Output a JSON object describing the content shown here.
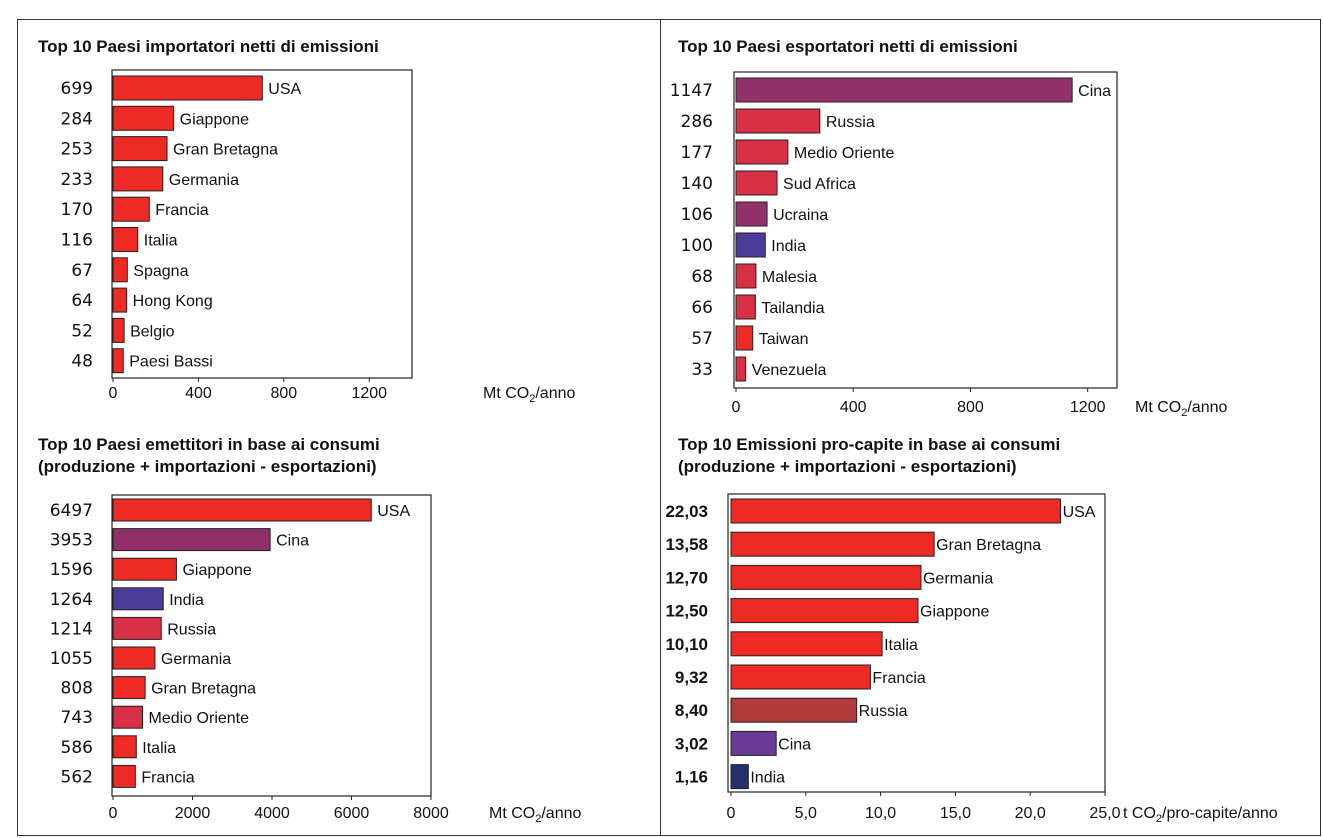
{
  "colors": {
    "red": "#EE2A24",
    "purple": "#92306A",
    "blue": "#4B3C98",
    "crimson": "#D83045",
    "violet": "#6A3A98",
    "navy": "#23306B",
    "brownred": "#B23A3A",
    "border": "#222222"
  },
  "chart_data": [
    {
      "type": "bar",
      "orientation": "horizontal",
      "title": "Top 10 Paesi importatori netti di emissioni",
      "subtitle": "",
      "unit_pre": "Mt CO",
      "unit_sub": "2",
      "unit_post": "/anno",
      "xlim": [
        0,
        1400
      ],
      "ticks": [
        0,
        400,
        800,
        1200
      ],
      "tick_labels": [
        "0",
        "400",
        "800",
        "1200"
      ],
      "categories": [
        "USA",
        "Giappone",
        "Gran Bretagna",
        "Germania",
        "Francia",
        "Italia",
        "Spagna",
        "Hong Kong",
        "Belgio",
        "Paesi Bassi"
      ],
      "values": [
        699,
        284,
        253,
        233,
        170,
        116,
        67,
        64,
        52,
        48
      ],
      "value_labels": [
        "699",
        "284",
        "253",
        "233",
        "170",
        "116",
        "67",
        "64",
        "52",
        "48"
      ],
      "colors": [
        "red",
        "red",
        "red",
        "red",
        "red",
        "red",
        "red",
        "red",
        "red",
        "red"
      ]
    },
    {
      "type": "bar",
      "orientation": "horizontal",
      "title": "Top 10 Paesi esportatori netti di emissioni",
      "subtitle": "",
      "unit_pre": "Mt CO",
      "unit_sub": "2",
      "unit_post": "/anno",
      "xlim": [
        0,
        1300
      ],
      "ticks": [
        0,
        400,
        800,
        1200
      ],
      "tick_labels": [
        "0",
        "400",
        "800",
        "1200"
      ],
      "categories": [
        "Cina",
        "Russia",
        "Medio Oriente",
        "Sud Africa",
        "Ucraina",
        "India",
        "Malesia",
        "Tailandia",
        "Taiwan",
        "Venezuela"
      ],
      "values": [
        1147,
        286,
        177,
        140,
        106,
        100,
        68,
        66,
        57,
        33
      ],
      "value_labels": [
        "1147",
        "286",
        "177",
        "140",
        "106",
        "100",
        "68",
        "66",
        "57",
        "33"
      ],
      "colors": [
        "purple",
        "crimson",
        "crimson",
        "crimson",
        "purple",
        "blue",
        "crimson",
        "crimson",
        "red",
        "crimson"
      ]
    },
    {
      "type": "bar",
      "orientation": "horizontal",
      "title": "Top 10 Paesi emettitori in base ai consumi",
      "subtitle": "(produzione + importazioni - esportazioni)",
      "unit_pre": "Mt CO",
      "unit_sub": "2",
      "unit_post": "/anno",
      "xlim": [
        0,
        8000
      ],
      "ticks": [
        0,
        2000,
        4000,
        6000,
        8000
      ],
      "tick_labels": [
        "0",
        "2000",
        "4000",
        "6000",
        "8000"
      ],
      "categories": [
        "USA",
        "Cina",
        "Giappone",
        "India",
        "Russia",
        "Germania",
        "Gran Bretagna",
        "Medio Oriente",
        "Italia",
        "Francia"
      ],
      "values": [
        6497,
        3953,
        1596,
        1264,
        1214,
        1055,
        808,
        743,
        586,
        562
      ],
      "value_labels": [
        "6497",
        "3953",
        "1596",
        "1264",
        "1214",
        "1055",
        "808",
        "743",
        "586",
        "562"
      ],
      "colors": [
        "red",
        "purple",
        "red",
        "blue",
        "crimson",
        "red",
        "red",
        "crimson",
        "red",
        "red"
      ]
    },
    {
      "type": "bar",
      "orientation": "horizontal",
      "title": "Top 10 Emissioni pro-capite in base ai consumi",
      "subtitle": "(produzione + importazioni - esportazioni)",
      "unit_pre": "t CO",
      "unit_sub": "2",
      "unit_post": "/pro-capite/anno",
      "xlim": [
        0,
        25
      ],
      "ticks": [
        0,
        5,
        10,
        15,
        20,
        25
      ],
      "tick_labels": [
        "0",
        "5,0",
        "10,0",
        "15,0",
        "20,0",
        "25,0"
      ],
      "categories": [
        "USA",
        "Gran Bretagna",
        "Germania",
        "Giappone",
        "Italia",
        "Francia",
        "Russia",
        "Cina",
        "India"
      ],
      "values": [
        22.03,
        13.58,
        12.7,
        12.5,
        10.1,
        9.32,
        8.4,
        3.02,
        1.16
      ],
      "value_labels": [
        "22,03",
        "13,58",
        "12,70",
        "12,50",
        "10,10",
        "9,32",
        "8,40",
        "3,02",
        "1,16"
      ],
      "colors": [
        "red",
        "red",
        "red",
        "red",
        "red",
        "red",
        "brownred",
        "violet",
        "navy"
      ]
    }
  ]
}
